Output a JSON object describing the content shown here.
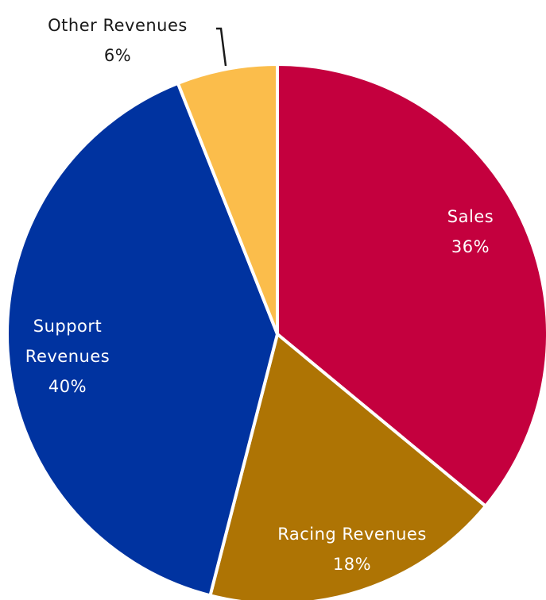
{
  "chart_data": {
    "type": "pie",
    "start_angle_deg": 0,
    "direction": "clockwise",
    "slices": [
      {
        "name": "Sales",
        "value": 36,
        "pct_label": "36%",
        "color": "#C4003E",
        "label_lines": [
          "Sales"
        ],
        "label_color": "#ffffff"
      },
      {
        "name": "Racing Revenues",
        "value": 18,
        "pct_label": "18%",
        "color": "#AE7404",
        "label_lines": [
          "Racing Revenues"
        ],
        "label_color": "#ffffff"
      },
      {
        "name": "Support Revenues",
        "value": 40,
        "pct_label": "40%",
        "color": "#0033A0",
        "label_lines": [
          "Support",
          "Revenues"
        ],
        "label_color": "#ffffff"
      },
      {
        "name": "Other Revenues",
        "value": 6,
        "pct_label": "6%",
        "color": "#FBBD4B",
        "label_lines": [
          "Other Revenues"
        ],
        "label_color": "#1a1a1a"
      }
    ]
  }
}
